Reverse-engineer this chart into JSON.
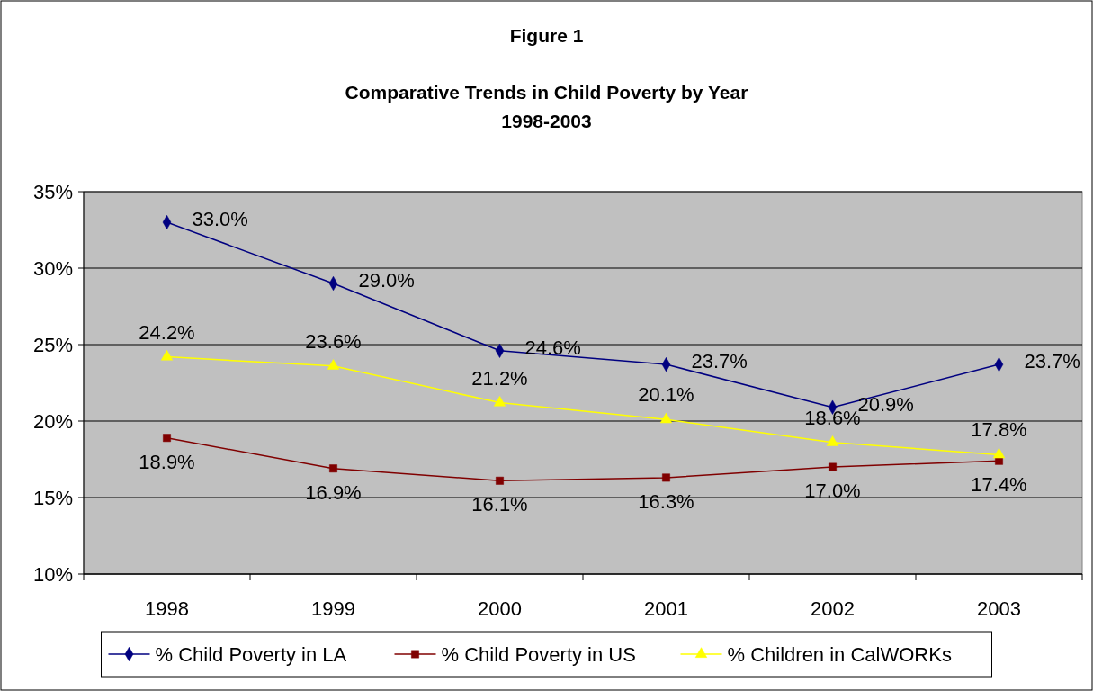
{
  "chart_data": {
    "type": "line",
    "title": "Figure 1",
    "subtitle": "Comparative Trends in Child Poverty by Year\n1998-2003",
    "categories": [
      "1998",
      "1999",
      "2000",
      "2001",
      "2002",
      "2003"
    ],
    "ylim": [
      10,
      35
    ],
    "yticks": [
      {
        "value": 10,
        "label": "10%"
      },
      {
        "value": 15,
        "label": "15%"
      },
      {
        "value": 20,
        "label": "20%"
      },
      {
        "value": 25,
        "label": "25%"
      },
      {
        "value": 30,
        "label": "30%"
      },
      {
        "value": 35,
        "label": "35%"
      }
    ],
    "grid": "y",
    "legend": "bottom",
    "series": [
      {
        "name": "% Child Poverty in LA",
        "color": "#000080",
        "marker": "diamond",
        "values": [
          33.0,
          29.0,
          24.6,
          23.7,
          20.9,
          23.7
        ],
        "value_labels": [
          "33.0%",
          "29.0%",
          "24.6%",
          "23.7%",
          "20.9%",
          "23.7%"
        ]
      },
      {
        "name": "% Child Poverty in US",
        "color": "#800000",
        "marker": "square",
        "values": [
          18.9,
          16.9,
          16.1,
          16.3,
          17.0,
          17.4
        ],
        "value_labels": [
          "18.9%",
          "16.9%",
          "16.1%",
          "16.3%",
          "17.0%",
          "17.4%"
        ]
      },
      {
        "name": "% Children in CalWORKs",
        "color": "#ffff00",
        "marker": "triangle",
        "values": [
          24.2,
          23.6,
          21.2,
          20.1,
          18.6,
          17.8
        ],
        "value_labels": [
          "24.2%",
          "23.6%",
          "21.2%",
          "20.1%",
          "18.6%",
          "17.8%"
        ]
      }
    ]
  }
}
